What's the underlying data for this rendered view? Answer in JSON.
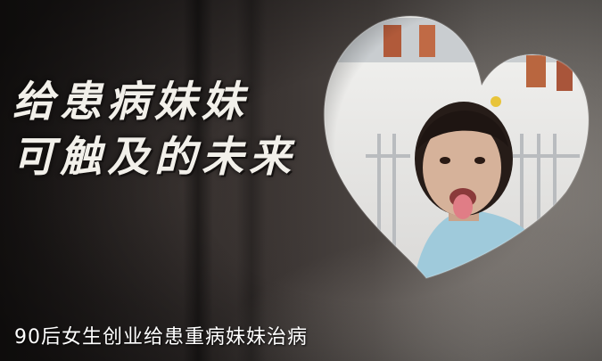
{
  "headline": {
    "line1": "给患病妹妹",
    "line2": "可触及的未来"
  },
  "caption": "90后女生创业给患重病妹妹治病"
}
